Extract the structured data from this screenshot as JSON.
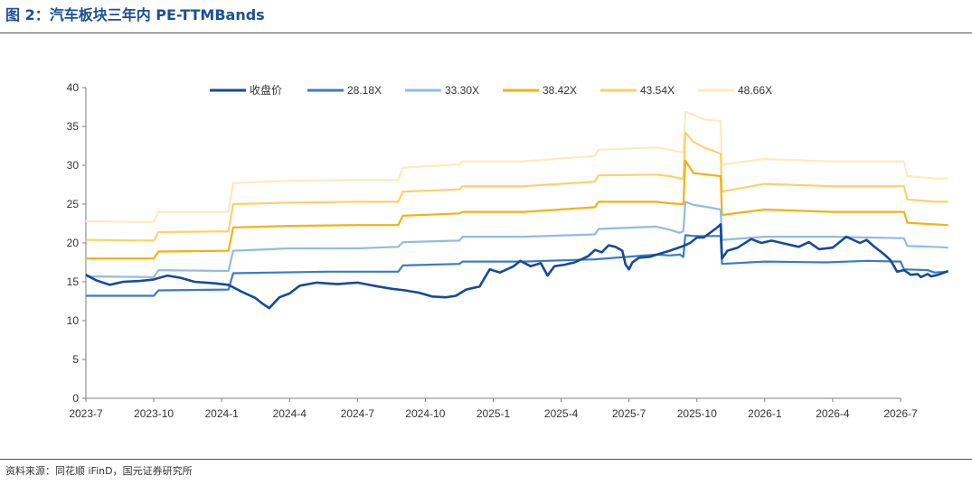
{
  "header": {
    "title": "图 2：汽车板块三年内 PE-TTMBands"
  },
  "footer": {
    "source": "资料来源：同花顺 iFinD，国元证券研究所"
  },
  "chart_data": {
    "type": "line",
    "title": "图 2：汽车板块三年内 PE-TTMBands",
    "xlabel": "",
    "ylabel": "",
    "ylim": [
      0,
      40
    ],
    "yticks": [
      0,
      5,
      10,
      15,
      20,
      25,
      30,
      35,
      40
    ],
    "xticks": [
      "2023-7",
      "2023-10",
      "2024-1",
      "2024-4",
      "2024-7",
      "2024-10",
      "2025-1",
      "2025-4",
      "2025-7",
      "2025-10",
      "2026-1",
      "2026-4",
      "2026-7"
    ],
    "grid": false,
    "legend": "top-center",
    "series": [
      {
        "name": "收盘价",
        "color": "#174a97",
        "width": 2.6,
        "points": [
          [
            0,
            15.9
          ],
          [
            0.15,
            15.2
          ],
          [
            0.35,
            14.6
          ],
          [
            0.55,
            15.0
          ],
          [
            0.8,
            15.1
          ],
          [
            1.0,
            15.3
          ],
          [
            1.2,
            15.8
          ],
          [
            1.4,
            15.5
          ],
          [
            1.6,
            15.0
          ],
          [
            1.9,
            14.8
          ],
          [
            2.1,
            14.6
          ],
          [
            2.3,
            13.7
          ],
          [
            2.5,
            12.9
          ],
          [
            2.6,
            12.2
          ],
          [
            2.7,
            11.6
          ],
          [
            2.85,
            13.0
          ],
          [
            3.0,
            13.5
          ],
          [
            3.15,
            14.5
          ],
          [
            3.4,
            14.9
          ],
          [
            3.7,
            14.7
          ],
          [
            4.0,
            14.9
          ],
          [
            4.3,
            14.4
          ],
          [
            4.5,
            14.1
          ],
          [
            4.7,
            13.9
          ],
          [
            4.9,
            13.6
          ],
          [
            5.1,
            13.1
          ],
          [
            5.3,
            13.0
          ],
          [
            5.45,
            13.2
          ],
          [
            5.6,
            14.0
          ],
          [
            5.8,
            14.4
          ],
          [
            5.88,
            15.6
          ],
          [
            5.95,
            16.6
          ],
          [
            6.1,
            16.2
          ],
          [
            6.3,
            17.0
          ],
          [
            6.4,
            17.7
          ],
          [
            6.55,
            17.0
          ],
          [
            6.7,
            17.4
          ],
          [
            6.8,
            15.8
          ],
          [
            6.9,
            17.0
          ],
          [
            7.05,
            17.2
          ],
          [
            7.2,
            17.5
          ],
          [
            7.4,
            18.3
          ],
          [
            7.5,
            19.1
          ],
          [
            7.6,
            18.8
          ],
          [
            7.7,
            19.7
          ],
          [
            7.8,
            19.5
          ],
          [
            7.9,
            19.0
          ],
          [
            7.95,
            17.2
          ],
          [
            8.0,
            16.6
          ],
          [
            8.05,
            17.5
          ],
          [
            8.15,
            18.1
          ],
          [
            8.3,
            18.2
          ],
          [
            8.45,
            18.6
          ],
          [
            8.6,
            19.0
          ],
          [
            8.8,
            19.6
          ],
          [
            8.9,
            20.0
          ],
          [
            9.0,
            20.7
          ],
          [
            9.1,
            20.7
          ],
          [
            9.3,
            22.0
          ],
          [
            9.35,
            22.4
          ],
          [
            9.37,
            18.0
          ],
          [
            9.45,
            19.0
          ],
          [
            9.6,
            19.4
          ],
          [
            9.8,
            20.5
          ],
          [
            9.95,
            20.0
          ],
          [
            10.1,
            20.3
          ],
          [
            10.3,
            19.9
          ],
          [
            10.5,
            19.5
          ],
          [
            10.65,
            20.1
          ],
          [
            10.8,
            19.2
          ],
          [
            11.0,
            19.4
          ],
          [
            11.2,
            20.8
          ],
          [
            11.4,
            20.0
          ],
          [
            11.5,
            20.4
          ],
          [
            11.6,
            19.6
          ],
          [
            11.75,
            18.6
          ],
          [
            11.85,
            17.8
          ],
          [
            11.95,
            16.3
          ],
          [
            12.05,
            16.5
          ],
          [
            12.15,
            15.9
          ],
          [
            12.25,
            16.0
          ],
          [
            12.3,
            15.6
          ],
          [
            12.4,
            16.0
          ],
          [
            12.45,
            15.7
          ],
          [
            12.55,
            15.9
          ],
          [
            12.65,
            16.2
          ],
          [
            12.7,
            16.4
          ]
        ]
      },
      {
        "name": "28.18X",
        "color": "#3b7bc4",
        "width": 2.2,
        "points": [
          [
            0,
            13.2
          ],
          [
            1.0,
            13.2
          ],
          [
            1.07,
            13.9
          ],
          [
            2.1,
            14.0
          ],
          [
            2.17,
            16.1
          ],
          [
            3.55,
            16.3
          ],
          [
            4.6,
            16.3
          ],
          [
            4.67,
            17.1
          ],
          [
            5.5,
            17.3
          ],
          [
            5.55,
            17.6
          ],
          [
            6.45,
            17.6
          ],
          [
            7.5,
            17.9
          ],
          [
            8.4,
            18.5
          ],
          [
            8.6,
            18.4
          ],
          [
            8.75,
            18.5
          ],
          [
            8.8,
            18.2
          ],
          [
            8.83,
            21.0
          ],
          [
            8.95,
            20.9
          ],
          [
            9.35,
            20.9
          ],
          [
            9.37,
            17.3
          ],
          [
            10.0,
            17.6
          ],
          [
            10.9,
            17.5
          ],
          [
            11.5,
            17.7
          ],
          [
            12.0,
            17.6
          ],
          [
            12.05,
            16.6
          ],
          [
            12.4,
            16.5
          ],
          [
            12.5,
            16.2
          ],
          [
            12.7,
            16.3
          ]
        ]
      },
      {
        "name": "33.30X",
        "color": "#93bbe0",
        "width": 2.2,
        "points": [
          [
            0,
            15.7
          ],
          [
            1.0,
            15.6
          ],
          [
            1.07,
            16.5
          ],
          [
            2.1,
            16.4
          ],
          [
            2.17,
            19.0
          ],
          [
            3.0,
            19.3
          ],
          [
            4.0,
            19.3
          ],
          [
            4.6,
            19.5
          ],
          [
            4.67,
            20.1
          ],
          [
            5.5,
            20.3
          ],
          [
            5.55,
            20.8
          ],
          [
            6.45,
            20.8
          ],
          [
            7.5,
            21.1
          ],
          [
            7.55,
            21.8
          ],
          [
            8.4,
            22.1
          ],
          [
            8.6,
            21.7
          ],
          [
            8.75,
            21.3
          ],
          [
            8.8,
            21.5
          ],
          [
            8.83,
            25.3
          ],
          [
            8.95,
            24.9
          ],
          [
            9.1,
            24.7
          ],
          [
            9.35,
            24.3
          ],
          [
            9.37,
            20.4
          ],
          [
            10.0,
            20.8
          ],
          [
            11.0,
            20.8
          ],
          [
            12.05,
            20.6
          ],
          [
            12.1,
            19.6
          ],
          [
            12.5,
            19.5
          ],
          [
            12.7,
            19.4
          ]
        ]
      },
      {
        "name": "38.42X",
        "color": "#f0b316",
        "width": 2.2,
        "points": [
          [
            0,
            18.0
          ],
          [
            1.0,
            18.0
          ],
          [
            1.07,
            18.9
          ],
          [
            2.1,
            19.0
          ],
          [
            2.17,
            22.0
          ],
          [
            3.0,
            22.2
          ],
          [
            4.0,
            22.3
          ],
          [
            4.6,
            22.3
          ],
          [
            4.67,
            23.5
          ],
          [
            5.5,
            23.8
          ],
          [
            5.55,
            24.0
          ],
          [
            6.45,
            24.0
          ],
          [
            7.5,
            24.6
          ],
          [
            7.55,
            25.3
          ],
          [
            8.4,
            25.3
          ],
          [
            8.6,
            25.1
          ],
          [
            8.8,
            25.0
          ],
          [
            8.83,
            30.6
          ],
          [
            8.95,
            29.0
          ],
          [
            9.35,
            28.6
          ],
          [
            9.37,
            23.6
          ],
          [
            10.0,
            24.3
          ],
          [
            11.0,
            24.0
          ],
          [
            12.05,
            24.0
          ],
          [
            12.1,
            22.6
          ],
          [
            12.5,
            22.4
          ],
          [
            12.7,
            22.3
          ]
        ]
      },
      {
        "name": "43.54X",
        "color": "#f8d26a",
        "width": 2.2,
        "points": [
          [
            0,
            20.4
          ],
          [
            1.0,
            20.3
          ],
          [
            1.07,
            21.4
          ],
          [
            2.1,
            21.5
          ],
          [
            2.17,
            25.0
          ],
          [
            3.0,
            25.2
          ],
          [
            4.0,
            25.3
          ],
          [
            4.6,
            25.3
          ],
          [
            4.67,
            26.6
          ],
          [
            5.5,
            26.9
          ],
          [
            5.55,
            27.3
          ],
          [
            6.45,
            27.3
          ],
          [
            7.5,
            27.9
          ],
          [
            7.55,
            28.7
          ],
          [
            8.4,
            28.8
          ],
          [
            8.6,
            28.6
          ],
          [
            8.8,
            28.2
          ],
          [
            8.83,
            34.2
          ],
          [
            8.95,
            33.0
          ],
          [
            9.1,
            32.3
          ],
          [
            9.35,
            31.5
          ],
          [
            9.37,
            26.6
          ],
          [
            10.0,
            27.6
          ],
          [
            11.0,
            27.3
          ],
          [
            12.05,
            27.3
          ],
          [
            12.1,
            25.6
          ],
          [
            12.5,
            25.3
          ],
          [
            12.7,
            25.3
          ]
        ]
      },
      {
        "name": "48.66X",
        "color": "#fcebbd",
        "width": 2.2,
        "points": [
          [
            0,
            22.8
          ],
          [
            1.0,
            22.7
          ],
          [
            1.07,
            24.0
          ],
          [
            2.1,
            24.0
          ],
          [
            2.17,
            27.7
          ],
          [
            3.0,
            28.0
          ],
          [
            4.0,
            28.1
          ],
          [
            4.6,
            28.1
          ],
          [
            4.67,
            29.7
          ],
          [
            5.5,
            30.1
          ],
          [
            5.55,
            30.5
          ],
          [
            6.45,
            30.5
          ],
          [
            7.5,
            31.2
          ],
          [
            7.55,
            32.0
          ],
          [
            8.4,
            32.3
          ],
          [
            8.6,
            32.0
          ],
          [
            8.8,
            31.6
          ],
          [
            8.83,
            36.9
          ],
          [
            8.95,
            36.5
          ],
          [
            9.1,
            35.9
          ],
          [
            9.35,
            35.7
          ],
          [
            9.37,
            30.1
          ],
          [
            10.0,
            30.8
          ],
          [
            11.0,
            30.5
          ],
          [
            12.05,
            30.5
          ],
          [
            12.1,
            28.6
          ],
          [
            12.5,
            28.3
          ],
          [
            12.7,
            28.3
          ]
        ]
      }
    ]
  }
}
